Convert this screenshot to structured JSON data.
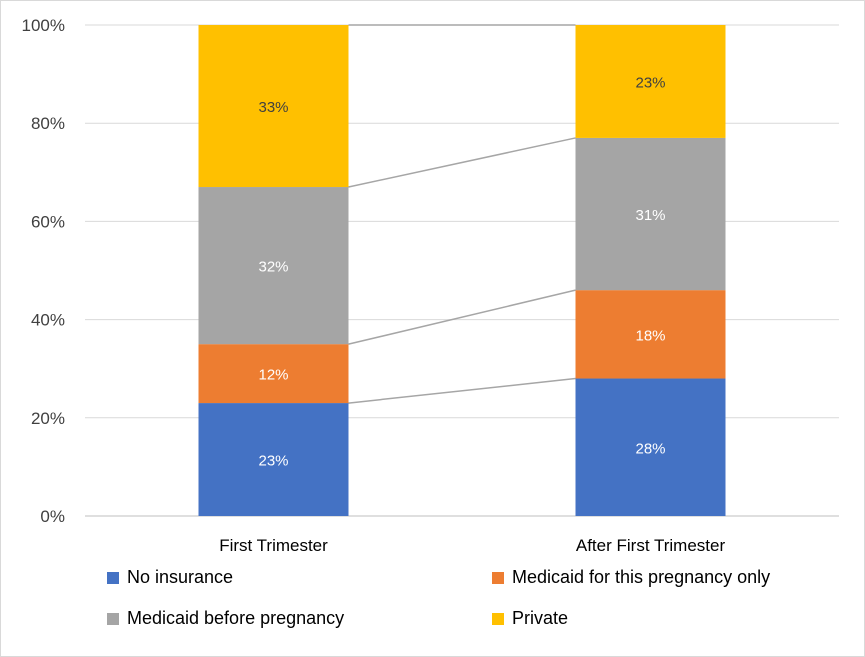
{
  "chart_data": {
    "type": "bar",
    "stacked": true,
    "percent": true,
    "categories": [
      "First Trimester",
      "After First Trimester"
    ],
    "series": [
      {
        "name": "No insurance",
        "values": [
          23,
          28
        ],
        "color": "#4472C4",
        "label_color": "#ffffff"
      },
      {
        "name": "Medicaid for this pregnancy only",
        "values": [
          12,
          18
        ],
        "color": "#ED7D31",
        "label_color": "#ffffff"
      },
      {
        "name": "Medicaid before pregnancy",
        "values": [
          32,
          31
        ],
        "color": "#A5A5A5",
        "label_color": "#ffffff"
      },
      {
        "name": "Private",
        "values": [
          33,
          23
        ],
        "color": "#FFC000",
        "label_color": "#404040"
      }
    ],
    "data_labels": [
      [
        "23%",
        "28%"
      ],
      [
        "12%",
        "18%"
      ],
      [
        "32%",
        "31%"
      ],
      [
        "33%",
        "23%"
      ]
    ],
    "yticks": [
      "0%",
      "20%",
      "40%",
      "60%",
      "80%",
      "100%"
    ],
    "ylim": [
      0,
      100
    ],
    "series_lines": true,
    "gridlines": true,
    "legend_position": "bottom",
    "title": "",
    "xlabel": "",
    "ylabel": ""
  }
}
